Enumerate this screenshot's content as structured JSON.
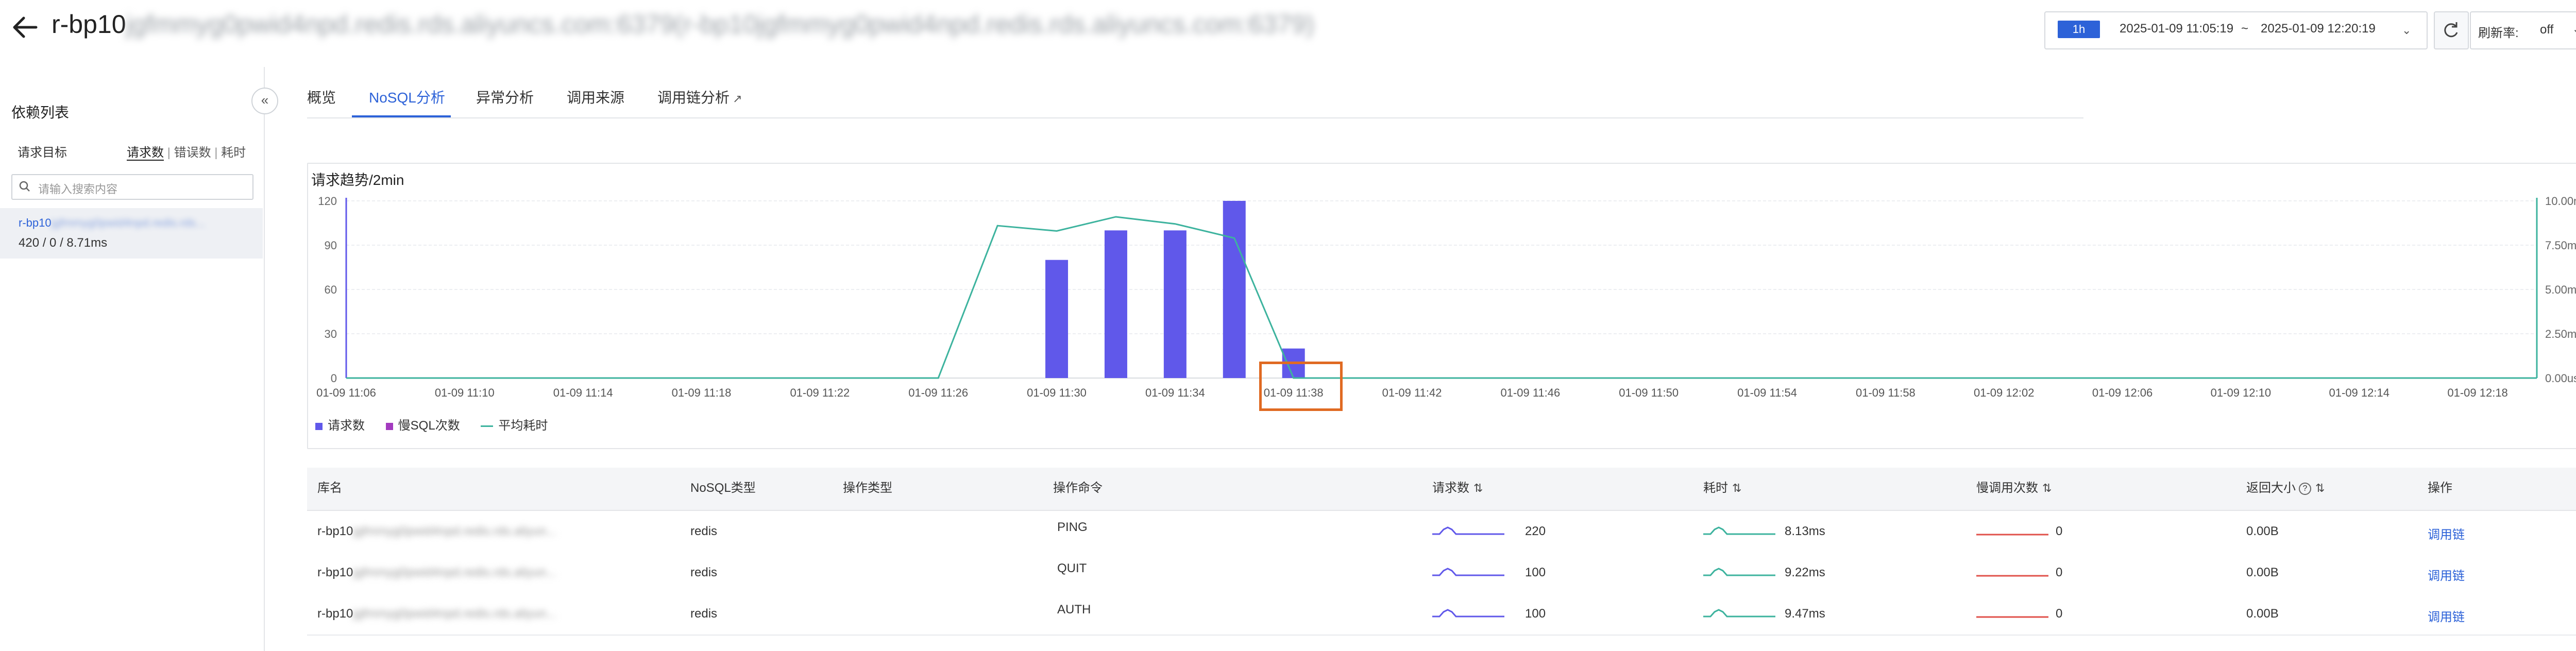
{
  "header": {
    "title_prefix": "r-bp10",
    "title_blurred": "jgfmmyg0pwid4npd.redis.rds.aliyuncs.com:6379(r-bp10jgfmmyg0pwid4npd.redis.rds.aliyuncs.com:6379)",
    "time_badge": "1h",
    "time_start": "2025-01-09 11:05:19",
    "time_sep": "~",
    "time_end": "2025-01-09 12:20:19",
    "refresh_label": "刷新率:",
    "refresh_value": "off"
  },
  "left_panel": {
    "title": "依赖列表",
    "subtitle": "请求目标",
    "metric_options": [
      "请求数",
      "错误数",
      "耗时"
    ],
    "search_placeholder": "请输入搜索内容",
    "items": [
      {
        "name_prefix": "r-bp10",
        "name_blurred": "jgfmmyg0pwid4npd.redis.rds...",
        "stat": "420 / 0 / 8.71ms"
      }
    ]
  },
  "tabs": [
    "概览",
    "NoSQL分析",
    "异常分析",
    "调用来源",
    "调用链分析"
  ],
  "chart": {
    "title": "请求趋势/2min",
    "legend": [
      "请求数",
      "慢SQL次数",
      "平均耗时"
    ]
  },
  "chart_data": {
    "type": "bar",
    "categories": [
      "01-09 11:06",
      "01-09 11:08",
      "01-09 11:10",
      "01-09 11:12",
      "01-09 11:14",
      "01-09 11:16",
      "01-09 11:18",
      "01-09 11:20",
      "01-09 11:22",
      "01-09 11:24",
      "01-09 11:26",
      "01-09 11:28",
      "01-09 11:30",
      "01-09 11:32",
      "01-09 11:34",
      "01-09 11:36",
      "01-09 11:38",
      "01-09 11:40",
      "01-09 11:42",
      "01-09 11:44",
      "01-09 11:46",
      "01-09 11:48",
      "01-09 11:50",
      "01-09 11:52",
      "01-09 11:54",
      "01-09 11:56",
      "01-09 11:58",
      "01-09 12:00",
      "01-09 12:02",
      "01-09 12:04",
      "01-09 12:06",
      "01-09 12:08",
      "01-09 12:10",
      "01-09 12:12",
      "01-09 12:14",
      "01-09 12:16",
      "01-09 12:18",
      "01-09 12:20"
    ],
    "x_tick_labels": [
      "01-09 11:06",
      "01-09 11:10",
      "01-09 11:14",
      "01-09 11:18",
      "01-09 11:22",
      "01-09 11:26",
      "01-09 11:30",
      "01-09 11:34",
      "01-09 11:38",
      "01-09 11:42",
      "01-09 11:46",
      "01-09 11:50",
      "01-09 11:54",
      "01-09 11:58",
      "01-09 12:02",
      "01-09 12:06",
      "01-09 12:10",
      "01-09 12:14",
      "01-09 12:18"
    ],
    "series": [
      {
        "name": "请求数",
        "axis": "left",
        "kind": "bar",
        "color": "#6058ea",
        "values": [
          0,
          0,
          0,
          0,
          0,
          0,
          0,
          0,
          0,
          0,
          0,
          0,
          80,
          100,
          100,
          120,
          20,
          0,
          0,
          0,
          0,
          0,
          0,
          0,
          0,
          0,
          0,
          0,
          0,
          0,
          0,
          0,
          0,
          0,
          0,
          0,
          0,
          0
        ]
      },
      {
        "name": "慢SQL次数",
        "axis": "left",
        "kind": "bar",
        "color": "#a33bbf",
        "values": [
          0,
          0,
          0,
          0,
          0,
          0,
          0,
          0,
          0,
          0,
          0,
          0,
          0,
          0,
          0,
          0,
          0,
          0,
          0,
          0,
          0,
          0,
          0,
          0,
          0,
          0,
          0,
          0,
          0,
          0,
          0,
          0,
          0,
          0,
          0,
          0,
          0,
          0
        ]
      },
      {
        "name": "平均耗时",
        "axis": "right",
        "kind": "line",
        "color": "#3db39e",
        "values": [
          0,
          0,
          0,
          0,
          0,
          0,
          0,
          0,
          0,
          0,
          0,
          8.6,
          8.3,
          9.1,
          8.7,
          7.9,
          0,
          0,
          0,
          0,
          0,
          0,
          0,
          0,
          0,
          0,
          0,
          0,
          0,
          0,
          0,
          0,
          0,
          0,
          0,
          0,
          0,
          0
        ]
      }
    ],
    "ylim_left": [
      0,
      120
    ],
    "yticks_left": [
      "0",
      "30",
      "60",
      "90",
      "120"
    ],
    "ylim_right": [
      0,
      10
    ],
    "yticks_right": [
      "0.00us",
      "2.50ms",
      "5.00ms",
      "7.50ms",
      "10.00ms"
    ],
    "grid": true,
    "legend_position": "bottom-left"
  },
  "table": {
    "headers": [
      "库名",
      "NoSQL类型",
      "操作类型",
      "操作命令",
      "请求数",
      "耗时",
      "慢调用次数",
      "返回大小",
      "操作"
    ],
    "rows": [
      {
        "db_prefix": "r-bp10",
        "db_blurred": "jgfmmyg0pwid4npd.redis.rds.aliyun...",
        "type": "redis",
        "op_type": "",
        "command": "PING",
        "requests": "220",
        "latency": "8.13ms",
        "slow": "0",
        "size": "0.00B",
        "action": "调用链"
      },
      {
        "db_prefix": "r-bp10",
        "db_blurred": "jgfmmyg0pwid4npd.redis.rds.aliyun...",
        "type": "redis",
        "op_type": "",
        "command": "QUIT",
        "requests": "100",
        "latency": "9.22ms",
        "slow": "0",
        "size": "0.00B",
        "action": "调用链"
      },
      {
        "db_prefix": "r-bp10",
        "db_blurred": "jgfmmyg0pwid4npd.redis.rds.aliyun...",
        "type": "redis",
        "op_type": "",
        "command": "AUTH",
        "requests": "100",
        "latency": "9.47ms",
        "slow": "0",
        "size": "0.00B",
        "action": "调用链"
      }
    ]
  },
  "colors": {
    "accent": "#2d62d8",
    "bar": "#6058ea",
    "line": "#3db39e",
    "slow_spark": "#e0504a",
    "highlight": "#e06a22"
  }
}
